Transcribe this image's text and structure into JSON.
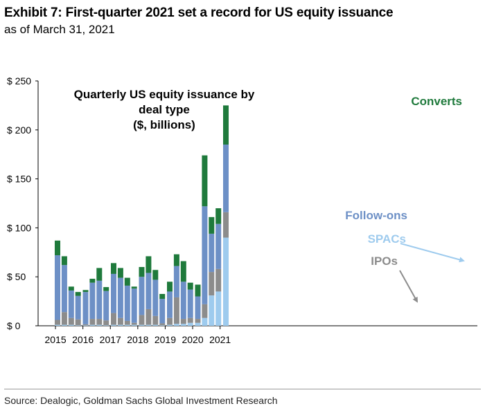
{
  "header": {
    "title": "Exhibit 7: First-quarter 2021 set a record for US equity issuance",
    "subtitle": "as of March 31, 2021"
  },
  "source": "Source: Dealogic, Goldman Sachs Global Investment Research",
  "chart_data": {
    "type": "bar",
    "stacked": true,
    "title_lines": [
      "Quarterly US equity issuance by",
      "deal type",
      "($, billions)"
    ],
    "ylim": [
      0,
      250
    ],
    "yticks": [
      0,
      50,
      100,
      150,
      200,
      250
    ],
    "ytick_labels": [
      "$ 0",
      "$ 50",
      "$ 100",
      "$ 150",
      "$ 200",
      "$ 250"
    ],
    "xtick_labels": [
      "2015",
      "2016",
      "2017",
      "2018",
      "2019",
      "2020",
      "2021"
    ],
    "categories": [
      "1Q15",
      "2Q15",
      "3Q15",
      "4Q15",
      "1Q16",
      "2Q16",
      "3Q16",
      "4Q16",
      "1Q17",
      "2Q17",
      "3Q17",
      "4Q17",
      "1Q18",
      "2Q18",
      "3Q18",
      "4Q18",
      "1Q19",
      "2Q19",
      "3Q19",
      "4Q19",
      "1Q20",
      "2Q20",
      "3Q20",
      "4Q20",
      "1Q21"
    ],
    "series": [
      {
        "name": "SPACs",
        "color": "#9ecbee",
        "values": [
          1,
          1,
          1,
          0.5,
          0.5,
          1,
          1,
          0.5,
          1,
          1,
          1,
          1,
          1,
          1,
          1,
          0.5,
          1,
          2,
          2,
          3,
          3,
          8,
          31,
          35,
          90
        ]
      },
      {
        "name": "IPOs",
        "color": "#8c8c8c",
        "values": [
          5,
          13,
          7,
          6,
          1,
          6,
          6,
          5,
          12,
          7,
          4,
          2,
          10,
          16,
          9,
          2,
          7,
          27,
          5,
          5,
          4,
          14,
          24,
          23,
          26
        ]
      },
      {
        "name": "Follow-ons",
        "color": "#6d90c6",
        "values": [
          66,
          48,
          28,
          24,
          33,
          37,
          39,
          30,
          40,
          41,
          36,
          35,
          39,
          37,
          37,
          25,
          27,
          32,
          38,
          29,
          23,
          100,
          39,
          46,
          69
        ]
      },
      {
        "name": "Converts",
        "color": "#1f7a3c",
        "values": [
          15,
          9,
          4,
          4,
          2,
          4,
          13,
          4,
          11,
          10,
          8,
          2,
          10,
          17,
          10,
          5,
          10,
          12,
          21,
          7,
          12,
          52,
          17,
          16,
          40
        ]
      }
    ],
    "annotations": [
      "Converts",
      "Follow-ons",
      "SPACs",
      "IPOs"
    ]
  }
}
